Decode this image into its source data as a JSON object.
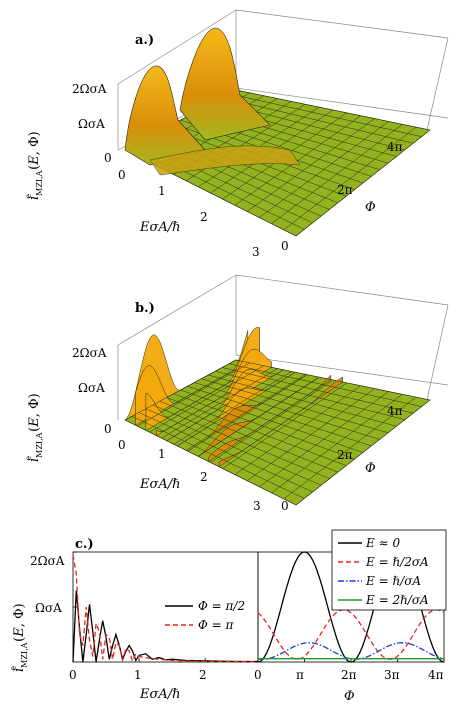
{
  "colors": {
    "surface_top": "#f2a90c",
    "surface_mid": "#d88a08",
    "surface_flat": "#8fb01e",
    "mesh": "#1f1f10",
    "black": "#000000",
    "red": "#e8251d",
    "blue": "#1a3fd6",
    "green": "#1e9a26"
  },
  "panels": {
    "a": {
      "label": "a.)",
      "zlabel": "i^e_MZI,A(E,Φ)",
      "z_ticks": [
        "2ΩσA",
        "ΩσA",
        "0"
      ],
      "x_axis_label": "EσA/ℏ",
      "x_ticks": [
        "0",
        "1",
        "2",
        "3"
      ],
      "y_axis_label": "Φ",
      "y_ticks": [
        "0",
        "2π",
        "4π"
      ]
    },
    "b": {
      "label": "b.)",
      "zlabel": "i^e_MZI,A(E,Φ)",
      "z_ticks": [
        "2ΩσA",
        "ΩσA",
        "0"
      ],
      "x_axis_label": "EσA/ℏ",
      "x_ticks": [
        "0",
        "1",
        "2",
        "3"
      ],
      "y_axis_label": "Φ",
      "y_ticks": [
        "0",
        "2π",
        "4π"
      ]
    },
    "c": {
      "label": "c.)",
      "ylabel": "i^e_MZI,A(E,Φ)",
      "y_ticks": [
        "2ΩσA",
        "ΩσA"
      ],
      "left_xlabel": "EσA/ℏ",
      "left_x_ticks": [
        "0",
        "1",
        "2"
      ],
      "right_xlabel": "Φ",
      "right_x_ticks": [
        "0",
        "π",
        "2π",
        "3π",
        "4π"
      ]
    }
  },
  "chart_data": [
    {
      "type": "surface",
      "panel": "a",
      "xlabel": "EσA/ℏ",
      "ylabel": "Φ",
      "zlabel": "i^e_MZI,A(E,Φ)",
      "xlim": [
        0,
        3
      ],
      "ylim": [
        0,
        12.566
      ],
      "zlim": [
        0,
        2
      ],
      "z_units": "ΩσA",
      "peaks": [
        {
          "E": 0.0,
          "Phi": 3.14,
          "z": 2.0
        },
        {
          "E": 0.0,
          "Phi": 9.42,
          "z": 2.0
        }
      ]
    },
    {
      "type": "surface",
      "panel": "b",
      "xlabel": "EσA/ℏ",
      "ylabel": "Φ",
      "zlabel": "i^e_MZI,A(E,Φ)",
      "xlim": [
        0,
        3
      ],
      "ylim": [
        0,
        12.566
      ],
      "zlim": [
        0,
        2
      ],
      "z_units": "ΩσA",
      "note_oscillations_along_E": true
    },
    {
      "type": "line",
      "panel": "c-left",
      "xlabel": "EσA/ℏ",
      "ylabel": "i^e_MZI,A(E,Φ)",
      "xlim": [
        0,
        2.8
      ],
      "ylim": [
        0,
        2
      ],
      "series": [
        {
          "name": "Φ = π/2",
          "color": "#000000",
          "dash": "solid",
          "x": [
            0,
            0.05,
            0.1,
            0.15,
            0.2,
            0.25,
            0.3,
            0.35,
            0.4,
            0.45,
            0.5,
            0.55,
            0.6,
            0.65,
            0.7,
            0.75,
            0.8,
            0.85,
            0.9,
            0.95,
            1.0,
            1.1,
            1.2,
            1.3,
            1.4,
            1.5,
            1.7,
            2.0,
            2.5,
            2.8
          ],
          "y": [
            0.0,
            1.3,
            0.6,
            0.0,
            0.5,
            1.05,
            0.55,
            0.0,
            0.4,
            0.75,
            0.45,
            0.05,
            0.3,
            0.5,
            0.3,
            0.05,
            0.2,
            0.3,
            0.2,
            0.03,
            0.12,
            0.15,
            0.05,
            0.08,
            0.04,
            0.05,
            0.03,
            0.02,
            0.01,
            0.01
          ]
        },
        {
          "name": "Φ = π",
          "color": "#e8251d",
          "dash": "dashed",
          "x": [
            0,
            0.05,
            0.1,
            0.15,
            0.2,
            0.25,
            0.3,
            0.35,
            0.4,
            0.45,
            0.5,
            0.55,
            0.6,
            0.65,
            0.7,
            0.75,
            0.8,
            0.85,
            0.9,
            0.95,
            1.0,
            1.1,
            1.2,
            1.3,
            1.4,
            1.5,
            1.7,
            2.0,
            2.5,
            2.8
          ],
          "y": [
            1.95,
            1.6,
            0.5,
            0.3,
            1.0,
            0.4,
            0.1,
            0.7,
            0.55,
            0.05,
            0.5,
            0.45,
            0.05,
            0.35,
            0.3,
            0.03,
            0.25,
            0.2,
            0.02,
            0.15,
            0.1,
            0.08,
            0.06,
            0.05,
            0.04,
            0.03,
            0.02,
            0.01,
            0.01,
            0.0
          ]
        }
      ]
    },
    {
      "type": "line",
      "panel": "c-right",
      "xlabel": "Φ",
      "xlim": [
        0,
        12.566
      ],
      "ylim": [
        0,
        2
      ],
      "series": [
        {
          "name": "E ≈ 0",
          "color": "#000000",
          "dash": "solid",
          "fn": "1 - cos(Φ)"
        },
        {
          "name": "E = ℏ/2σA",
          "color": "#e8251d",
          "dash": "dashed",
          "fn": "0.45*(1 + cos(Φ + 0.5)) + 0.05"
        },
        {
          "name": "E = ℏ/σA",
          "color": "#1a3fd6",
          "dash": "dashdot",
          "fn": "0.15*(1 - cos(Φ - 0.3)) + 0.05"
        },
        {
          "name": "E = 2ℏ/σA",
          "color": "#1e9a26",
          "dash": "solid",
          "fn": "0.06"
        }
      ]
    }
  ]
}
